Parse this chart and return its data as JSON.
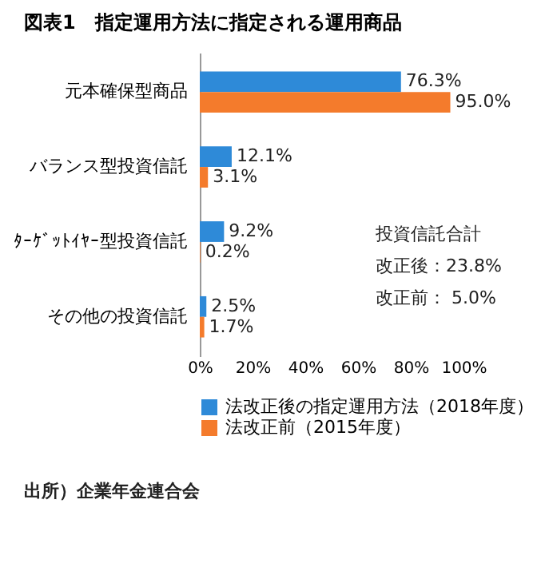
{
  "chart_data": {
    "type": "bar",
    "orientation": "horizontal",
    "title": "図表1　指定運用方法に指定される運用商品",
    "categories": [
      "元本確保型商品",
      "バランス型投資信託",
      "ﾀｰｹﾞｯﾄｲﾔｰ型投資信託",
      "その他の投資信託"
    ],
    "series": [
      {
        "name": "法改正後の指定運用方法（2018年度）",
        "color": "#2e8ad8",
        "values": [
          76.3,
          12.1,
          9.2,
          2.5
        ]
      },
      {
        "name": "法改正前（2015年度）",
        "color": "#f47b2c",
        "values": [
          95.0,
          3.1,
          0.2,
          1.7
        ]
      }
    ],
    "xlim": [
      0,
      100
    ],
    "xticks": [
      {
        "value": 0,
        "label": "0%"
      },
      {
        "value": 20,
        "label": "20%"
      },
      {
        "value": 40,
        "label": "40%"
      },
      {
        "value": 60,
        "label": "60%"
      },
      {
        "value": 80,
        "label": "80%"
      },
      {
        "value": 100,
        "label": "100%"
      }
    ],
    "value_labels": [
      [
        "76.3%",
        "12.1%",
        "9.2%",
        "2.5%"
      ],
      [
        "95.0%",
        "3.1%",
        "0.2%",
        "1.7%"
      ]
    ],
    "annotations": [
      "投資信託合計",
      "改正後：23.8%",
      "改正前： 5.0%",
      "出所）企業年金連合会"
    ],
    "legend": "bottom",
    "grid": false
  }
}
